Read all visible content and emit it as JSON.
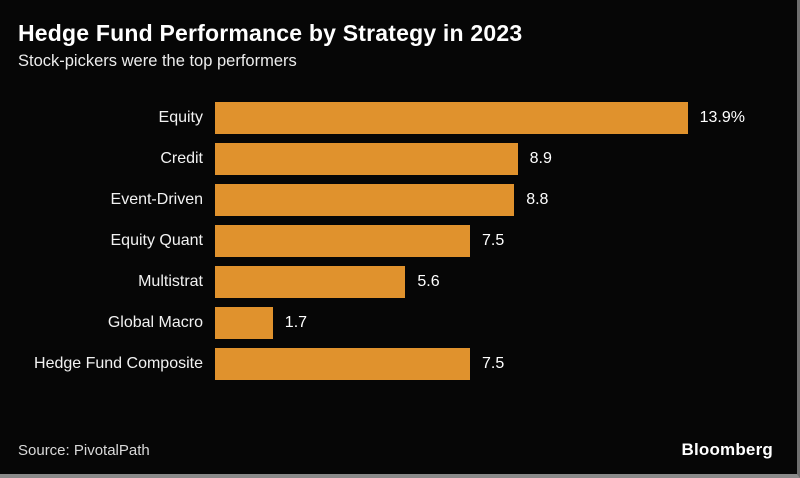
{
  "header": {
    "title": "Hedge Fund Performance by Strategy in 2023",
    "subtitle": "Stock-pickers were the top performers"
  },
  "chart_data": {
    "type": "bar",
    "orientation": "horizontal",
    "title": "Hedge Fund Performance by Strategy in 2023",
    "subtitle": "Stock-pickers were the top performers",
    "categories": [
      "Equity",
      "Credit",
      "Event-Driven",
      "Equity Quant",
      "Multistrat",
      "Global Macro",
      "Hedge Fund Composite"
    ],
    "values": [
      13.9,
      8.9,
      8.8,
      7.5,
      5.6,
      1.7,
      7.5
    ],
    "value_labels": [
      "13.9%",
      "8.9",
      "8.8",
      "7.5",
      "5.6",
      "1.7",
      "7.5"
    ],
    "unit": "%",
    "xlim": [
      0,
      14
    ],
    "grid": false,
    "legend": false,
    "bar_color": "#E0922D",
    "background_color": "#060606",
    "text_color": "#FFFFFF"
  },
  "footer": {
    "source": "Source: PivotalPath",
    "brand": "Bloomberg"
  }
}
